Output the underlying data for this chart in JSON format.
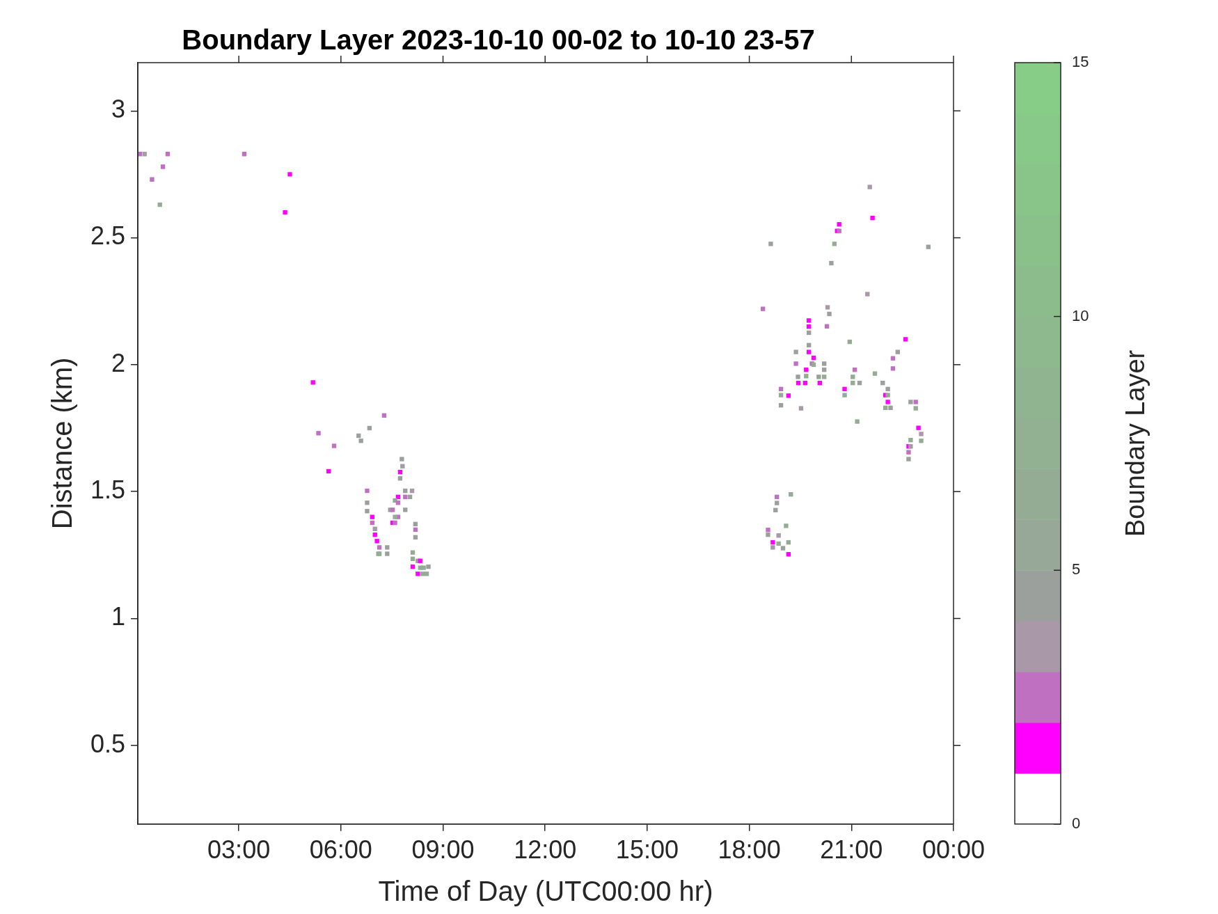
{
  "chart_data": {
    "type": "scatter",
    "title": "Boundary Layer 2023-10-10 00-02 to 10-10 23-57",
    "xlabel": "Time of Day (UTC00:00 hr)",
    "ylabel": "Distance (km)",
    "clabel": "Boundary Layer",
    "xlim": [
      0.033,
      24
    ],
    "xticks": [
      {
        "value": 3,
        "label": "03:00"
      },
      {
        "value": 6,
        "label": "06:00"
      },
      {
        "value": 9,
        "label": "09:00"
      },
      {
        "value": 12,
        "label": "12:00"
      },
      {
        "value": 15,
        "label": "15:00"
      },
      {
        "value": 18,
        "label": "18:00"
      },
      {
        "value": 21,
        "label": "21:00"
      },
      {
        "value": 24,
        "label": "00:00"
      }
    ],
    "ylim": [
      0.19,
      3.19
    ],
    "yticks": [
      0.5,
      1,
      1.5,
      2,
      2.5,
      3
    ],
    "clim": [
      0,
      15
    ],
    "cticks": [
      0,
      5,
      10,
      15
    ],
    "grid": false,
    "legend": false,
    "marker": "square",
    "series": [
      {
        "x": [
          0.09,
          0.23,
          0.91,
          0.77,
          0.45,
          0.68,
          3.16,
          4.5,
          4.36,
          5.18,
          5.34,
          5.8,
          5.64,
          7.27,
          6.84,
          6.52,
          6.59,
          7.79,
          7.81,
          7.74,
          7.74,
          6.77,
          6.77,
          6.77,
          7.89,
          8.09,
          8.03,
          7.89,
          7.68,
          7.59,
          7.68,
          7.45,
          7.52,
          7.89,
          7.68,
          7.59,
          7.52,
          7.59,
          6.92,
          6.92,
          7.0,
          7.0,
          7.06,
          7.13,
          7.1,
          7.13,
          7.36,
          7.36,
          8.19,
          8.19,
          8.19,
          8.11,
          8.11,
          8.11,
          8.26,
          8.33,
          8.26,
          8.33,
          8.43,
          8.57,
          8.4,
          8.52,
          21.54,
          21.62,
          20.64,
          20.58,
          20.64,
          18.63,
          20.5,
          23.26,
          20.41,
          21.47,
          18.4,
          20.3,
          20.35,
          19.75,
          19.75,
          19.75,
          20.28,
          20.95,
          22.59,
          22.36,
          19.37,
          19.75,
          19.75,
          19.89,
          19.37,
          19.84,
          19.89,
          20.2,
          20.2,
          22.22,
          22.22,
          19.67,
          19.67,
          21.1,
          21.69,
          19.43,
          20.04,
          20.2,
          21.04,
          19.44,
          19.64,
          20.07,
          21.04,
          21.24,
          21.92,
          18.93,
          18.93,
          19.15,
          20.8,
          20.8,
          22.07,
          22.0,
          22.07,
          22.74,
          22.89,
          22.07,
          18.93,
          19.52,
          22.0,
          22.15,
          22.89,
          21.17,
          22.97,
          23.05,
          23.05,
          22.74,
          22.68,
          22.74,
          22.68,
          22.68,
          19.22,
          18.81,
          18.81,
          18.77,
          19.08,
          18.55,
          18.55,
          18.86,
          18.86,
          18.69,
          18.69,
          18.99,
          19.15,
          19.15
        ],
        "values": [
          2.83,
          2.83,
          2.83,
          2.78,
          2.73,
          2.63,
          2.83,
          2.75,
          2.6,
          1.93,
          1.73,
          1.68,
          1.58,
          1.8,
          1.75,
          1.72,
          1.7,
          1.628,
          1.6,
          1.577,
          1.552,
          1.503,
          1.456,
          1.423,
          1.503,
          1.503,
          1.479,
          1.479,
          1.479,
          1.465,
          1.456,
          1.428,
          1.428,
          1.428,
          1.4,
          1.4,
          1.377,
          1.377,
          1.4,
          1.377,
          1.353,
          1.33,
          1.305,
          1.28,
          1.255,
          1.255,
          1.28,
          1.255,
          1.372,
          1.35,
          1.32,
          1.26,
          1.235,
          1.204,
          1.227,
          1.227,
          1.176,
          1.2,
          1.2,
          1.204,
          1.176,
          1.176,
          2.7,
          2.578,
          2.553,
          2.527,
          2.527,
          2.476,
          2.476,
          2.464,
          2.4,
          2.278,
          2.22,
          2.226,
          2.2,
          2.174,
          2.15,
          2.126,
          2.151,
          2.09,
          2.1,
          2.05,
          2.05,
          2.077,
          2.05,
          2.027,
          2.004,
          2.004,
          2.0,
          2.004,
          1.98,
          2.025,
          1.985,
          1.98,
          1.955,
          1.98,
          1.965,
          1.952,
          1.952,
          1.952,
          1.952,
          1.928,
          1.928,
          1.928,
          1.928,
          1.928,
          1.928,
          1.904,
          1.88,
          1.878,
          1.904,
          1.88,
          1.904,
          1.88,
          1.88,
          1.853,
          1.853,
          1.853,
          1.84,
          1.828,
          1.83,
          1.83,
          1.828,
          1.776,
          1.751,
          1.727,
          1.7,
          1.703,
          1.678,
          1.678,
          1.655,
          1.628,
          1.489,
          1.479,
          1.455,
          1.427,
          1.365,
          1.349,
          1.33,
          1.327,
          1.295,
          1.3,
          1.28,
          1.277,
          1.3,
          1.253
        ],
        "cvalues": [
          2.5,
          3.5,
          2.5,
          2.5,
          2.5,
          6.5,
          2.5,
          1.5,
          1.5,
          1.5,
          2.5,
          2.5,
          1.5,
          2.5,
          4.5,
          4.5,
          4.5,
          4.5,
          3.5,
          1.5,
          4.5,
          2.5,
          4.5,
          4.5,
          4.5,
          3.5,
          4.5,
          2.5,
          1.5,
          4.5,
          2.5,
          4.5,
          2.5,
          4.5,
          2.5,
          6.5,
          1.5,
          2.5,
          1.5,
          2.5,
          3.5,
          1.5,
          1.5,
          2.5,
          6.5,
          6.5,
          4.5,
          4.5,
          4.5,
          2.5,
          4.5,
          6.5,
          6.5,
          1.5,
          4.5,
          1.5,
          1.5,
          6.5,
          6.5,
          4.5,
          6.5,
          6.5,
          3.5,
          1.5,
          1.5,
          1.5,
          2.5,
          4.5,
          6.5,
          4.5,
          4.5,
          3.5,
          2.5,
          3.5,
          4.5,
          1.5,
          1.5,
          4.5,
          2.5,
          6.5,
          1.5,
          4.5,
          4.5,
          4.5,
          1.5,
          1.5,
          2.5,
          2.5,
          6.5,
          4.5,
          4.5,
          2.5,
          2.5,
          1.5,
          6.5,
          2.5,
          6.5,
          4.5,
          4.5,
          6.5,
          6.5,
          1.5,
          1.5,
          1.5,
          6.5,
          4.5,
          4.5,
          2.5,
          6.5,
          1.5,
          1.5,
          6.5,
          4.5,
          1.5,
          6.5,
          4.5,
          2.5,
          1.5,
          4.5,
          3.5,
          6.5,
          4.5,
          6.5,
          6.5,
          1.5,
          3.5,
          6.5,
          6.5,
          1.5,
          3.5,
          2.5,
          4.5,
          6.5,
          2.5,
          4.5,
          4.5,
          6.5,
          2.5,
          4.5,
          3.5,
          6.5,
          1.5,
          3.5,
          4.5,
          6.5,
          1.5
        ]
      }
    ]
  }
}
